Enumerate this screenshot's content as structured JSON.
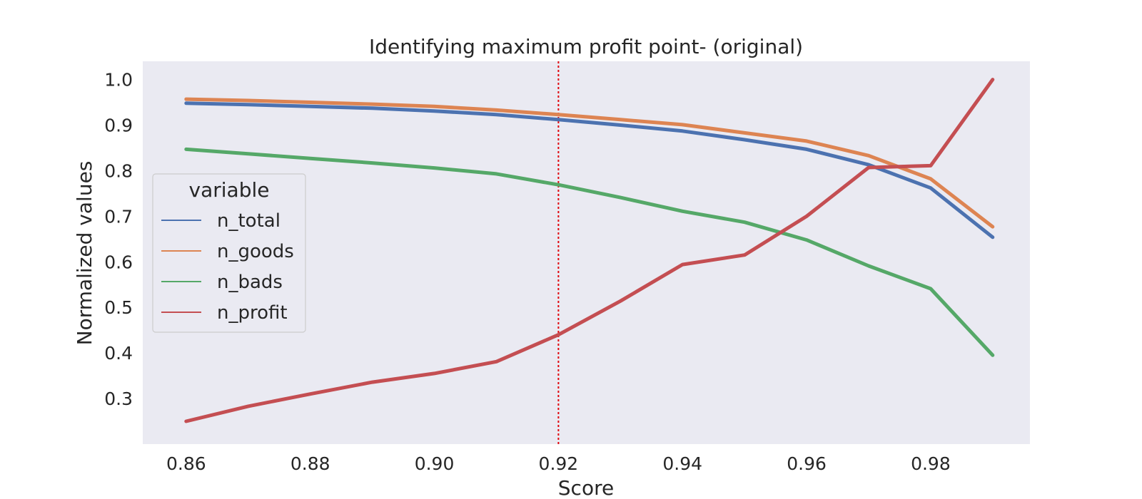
{
  "chart_data": {
    "type": "line",
    "title": "Identifying maximum profit point- (original)",
    "xlabel": "Score",
    "ylabel": "Normalized values",
    "x": [
      0.86,
      0.87,
      0.88,
      0.89,
      0.9,
      0.91,
      0.92,
      0.93,
      0.94,
      0.95,
      0.96,
      0.97,
      0.98,
      0.99
    ],
    "xlim": [
      0.853,
      0.996
    ],
    "ylim": [
      0.2,
      1.04
    ],
    "xticks": [
      0.86,
      0.88,
      0.9,
      0.92,
      0.94,
      0.96,
      0.98
    ],
    "xtick_labels": [
      "0.86",
      "0.88",
      "0.90",
      "0.92",
      "0.94",
      "0.96",
      "0.98"
    ],
    "yticks": [
      0.3,
      0.4,
      0.5,
      0.6,
      0.7,
      0.8,
      0.9,
      1.0
    ],
    "ytick_labels": [
      "0.3",
      "0.4",
      "0.5",
      "0.6",
      "0.7",
      "0.8",
      "0.9",
      "1.0"
    ],
    "grid": false,
    "background": "#eaeaf2",
    "vline": {
      "x": 0.92,
      "color": "#e0000a",
      "style": "dotted"
    },
    "legend": {
      "title": "variable",
      "placement": "center-left"
    },
    "series": [
      {
        "name": "n_total",
        "color": "#4c72b0",
        "values": [
          0.948,
          0.945,
          0.941,
          0.937,
          0.931,
          0.923,
          0.912,
          0.9,
          0.887,
          0.868,
          0.847,
          0.813,
          0.762,
          0.654
        ]
      },
      {
        "name": "n_goods",
        "color": "#dd8452",
        "values": [
          0.957,
          0.954,
          0.95,
          0.946,
          0.941,
          0.933,
          0.923,
          0.912,
          0.901,
          0.883,
          0.865,
          0.833,
          0.782,
          0.677
        ]
      },
      {
        "name": "n_bads",
        "color": "#55a868",
        "values": [
          0.847,
          0.837,
          0.827,
          0.817,
          0.806,
          0.793,
          0.769,
          0.741,
          0.711,
          0.687,
          0.648,
          0.591,
          0.541,
          0.395
        ]
      },
      {
        "name": "n_profit",
        "color": "#c44e52",
        "values": [
          0.25,
          0.283,
          0.31,
          0.336,
          0.355,
          0.381,
          0.44,
          0.514,
          0.594,
          0.615,
          0.7,
          0.807,
          0.811,
          1.0
        ]
      }
    ]
  }
}
